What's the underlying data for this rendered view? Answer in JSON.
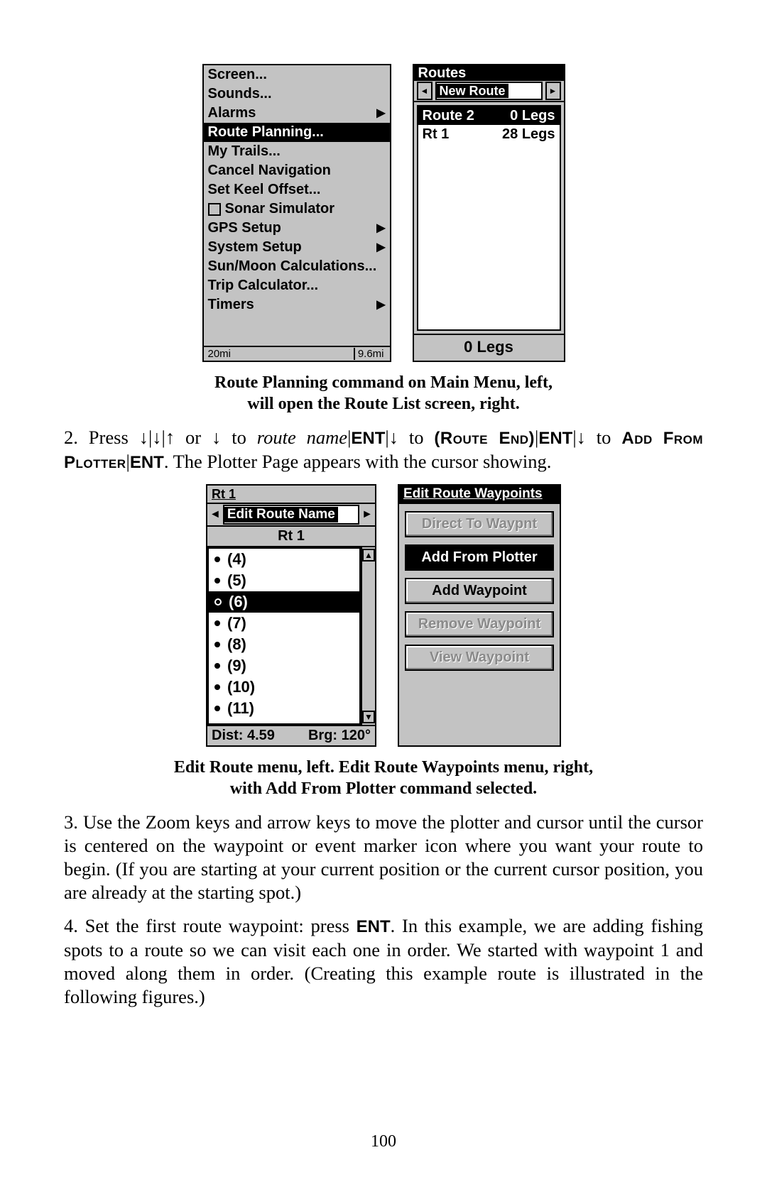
{
  "fig1": {
    "menu": {
      "items": [
        {
          "label": "Screen...",
          "arrow": false,
          "selected": false
        },
        {
          "label": "Sounds...",
          "arrow": false,
          "selected": false
        },
        {
          "label": "Alarms",
          "arrow": true,
          "selected": false
        },
        {
          "label": "Route Planning...",
          "arrow": false,
          "selected": true
        },
        {
          "label": "My Trails...",
          "arrow": false,
          "selected": false
        },
        {
          "label": "Cancel Navigation",
          "arrow": false,
          "selected": false
        },
        {
          "label": "Set Keel Offset...",
          "arrow": false,
          "selected": false
        },
        {
          "label": "Sonar Simulator",
          "arrow": false,
          "selected": false,
          "checkbox": true
        },
        {
          "label": "GPS Setup",
          "arrow": true,
          "selected": false
        },
        {
          "label": "System Setup",
          "arrow": true,
          "selected": false
        },
        {
          "label": "Sun/Moon Calculations...",
          "arrow": false,
          "selected": false
        },
        {
          "label": "Trip Calculator...",
          "arrow": false,
          "selected": false
        },
        {
          "label": "Timers",
          "arrow": true,
          "selected": false
        }
      ],
      "status_left": "20mi",
      "status_right": "9.6mi"
    },
    "routes": {
      "title": "Routes",
      "picker_value": "New Route",
      "rows": [
        {
          "name": "Route 2",
          "legs": "0 Legs",
          "selected": true
        },
        {
          "name": "Rt 1",
          "legs": "28 Legs",
          "selected": false
        }
      ],
      "footer": "0 Legs"
    }
  },
  "caption1_line1": "Route Planning command on Main Menu, left,",
  "caption1_line2": "will open the Route List screen, right.",
  "step2_prefix": "2. Press ",
  "step2_route_name": "route name",
  "step2_ent": "ENT",
  "step2_route_end": "(Route End)",
  "step2_add": "Add",
  "step2_from_plotter": "From Plotter",
  "step2_tail": ". The Plotter Page appears with the cursor showing.",
  "fig2": {
    "edit": {
      "top": "Rt 1",
      "header": "Edit Route Name",
      "name": "Rt 1",
      "items": [
        {
          "n": "(4)",
          "sel": false
        },
        {
          "n": "(5)",
          "sel": false
        },
        {
          "n": "(6)",
          "sel": true
        },
        {
          "n": "(7)",
          "sel": false
        },
        {
          "n": "(8)",
          "sel": false
        },
        {
          "n": "(9)",
          "sel": false
        },
        {
          "n": "(10)",
          "sel": false
        },
        {
          "n": "(11)",
          "sel": false
        }
      ],
      "dist": "Dist: 4.59",
      "brg": "Brg: 120°"
    },
    "wp": {
      "title": "Edit Route Waypoints",
      "buttons": [
        {
          "label": "Direct To Waypnt",
          "state": "disabled"
        },
        {
          "label": "Add From Plotter",
          "state": "sel"
        },
        {
          "label": "Add Waypoint",
          "state": "normal"
        },
        {
          "label": "Remove Waypoint",
          "state": "disabled"
        },
        {
          "label": "View Waypoint",
          "state": "disabled"
        }
      ]
    }
  },
  "caption2_line1": "Edit Route menu, left. Edit Route Waypoints menu, right,",
  "caption2_line2": "with Add From Plotter command selected.",
  "para3": "3. Use the Zoom keys and arrow keys to move the plotter and cursor until the cursor is centered on the waypoint or event marker icon where you want your route to begin. (If you are starting at your current position or the current cursor position, you are already at the starting spot.)",
  "para4_a": "4. Set the first route waypoint: press ",
  "para4_ent": "ENT",
  "para4_b": ". In this example, we are adding fishing spots to a route so we can visit each one in order. We started with waypoint 1 and moved along them in order. (Creating this example route is illustrated in the following figures.)",
  "pagenum": "100"
}
